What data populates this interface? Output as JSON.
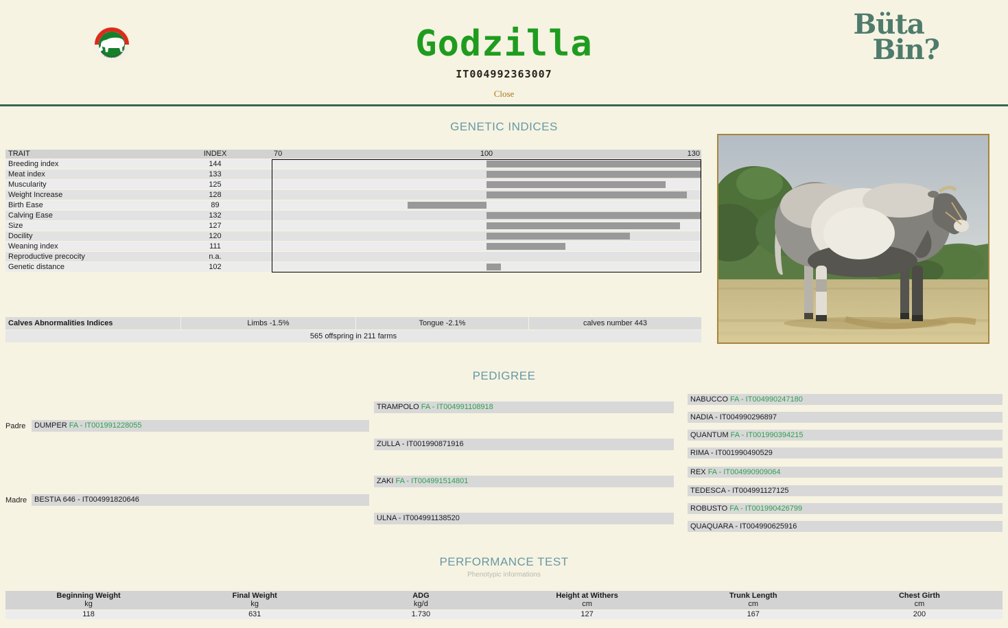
{
  "colors": {
    "page_background": "#f6f3e2",
    "accent_green_title": "#1f9c1f",
    "heading_teal": "#6898a4",
    "brand_teal": "#4e7b6c",
    "close_gold": "#a9781f",
    "divider_green": "#3d6454",
    "chart_bar_gray": "#999999",
    "pedigree_id_green": "#2f9e4f"
  },
  "header": {
    "title": "Godzilla",
    "animal_id": "IT004992363007",
    "close_label": "Close",
    "brand": {
      "line1": "Büta",
      "line2": "Bin?"
    },
    "breed_badge": {
      "icon": "piemontese-bull-badge-icon",
      "ring_text": "RAZZA PIEMONTESE"
    }
  },
  "genetic_indices": {
    "heading": "GENETIC INDICES",
    "columns": {
      "trait": "TRAIT",
      "index": "INDEX"
    },
    "axis_labels": [
      "70",
      "100",
      "130"
    ],
    "chart_data": {
      "type": "bar",
      "orientation": "horizontal",
      "baseline": 100,
      "xlim": [
        70,
        130
      ],
      "grid": false,
      "categories": [
        "Breeding index",
        "Meat index",
        "Muscularity",
        "Weight Increase",
        "Birth Ease",
        "Calving Ease",
        "Size",
        "Docility",
        "Weaning index",
        "Reproductive precocity",
        "Genetic distance"
      ],
      "values": [
        144,
        133,
        125,
        128,
        89,
        132,
        127,
        120,
        111,
        null,
        102
      ],
      "display_values": [
        "144",
        "133",
        "125",
        "128",
        "89",
        "132",
        "127",
        "120",
        "111",
        "n.a.",
        "102"
      ]
    },
    "calves": {
      "label": "Calves Abnormalities Indices",
      "limbs": "Limbs -1.5%",
      "tongue": "Tongue -2.1%",
      "calves_number": "calves number 443",
      "offspring_note": "565 offspring in 211 farms"
    },
    "photo": {
      "description": "piemontese-bull-photo"
    }
  },
  "pedigree": {
    "heading": "PEDIGREE",
    "padre_label": "Padre",
    "madre_label": "Madre",
    "nodes": [
      {
        "key": "sire",
        "name": "DUMPER",
        "reg": "FA - IT001991228055",
        "highlight": true
      },
      {
        "key": "dam",
        "name": "BESTIA 646",
        "reg": "- IT004991820646",
        "highlight": false
      },
      {
        "key": "sire-sire",
        "name": "TRAMPOLO",
        "reg": "FA - IT004991108918",
        "highlight": true
      },
      {
        "key": "sire-dam",
        "name": "ZULLA",
        "reg": "- IT001990871916",
        "highlight": false
      },
      {
        "key": "dam-sire",
        "name": "ZAKI",
        "reg": "FA - IT004991514801",
        "highlight": true
      },
      {
        "key": "dam-dam",
        "name": "ULNA",
        "reg": "- IT004991138520",
        "highlight": false
      },
      {
        "key": "sire-sire-sire",
        "name": "NABUCCO",
        "reg": "FA - IT004990247180",
        "highlight": true
      },
      {
        "key": "sire-sire-dam",
        "name": "NADIA",
        "reg": "- IT004990296897",
        "highlight": false
      },
      {
        "key": "sire-dam-sire",
        "name": "QUANTUM",
        "reg": "FA - IT001990394215",
        "highlight": true
      },
      {
        "key": "sire-dam-dam",
        "name": "RIMA",
        "reg": "- IT001990490529",
        "highlight": false
      },
      {
        "key": "dam-sire-sire",
        "name": "REX",
        "reg": "FA - IT004990909064",
        "highlight": true
      },
      {
        "key": "dam-sire-dam",
        "name": "TEDESCA",
        "reg": "- IT004991127125",
        "highlight": false
      },
      {
        "key": "dam-dam-sire",
        "name": "ROBUSTO",
        "reg": "FA - IT001990426799",
        "highlight": true
      },
      {
        "key": "dam-dam-dam",
        "name": "QUAQUARA",
        "reg": "- IT004990625916",
        "highlight": false
      }
    ]
  },
  "performance_test": {
    "heading": "PERFORMANCE TEST",
    "subtitle": "Phenotypic informations",
    "columns": [
      {
        "label": "Beginning Weight",
        "unit": "kg",
        "value": "118"
      },
      {
        "label": "Final Weight",
        "unit": "kg",
        "value": "631"
      },
      {
        "label": "ADG",
        "unit": "kg/d",
        "value": "1.730"
      },
      {
        "label": "Height at Withers",
        "unit": "cm",
        "value": "127"
      },
      {
        "label": "Trunk Length",
        "unit": "cm",
        "value": "167"
      },
      {
        "label": "Chest Girth",
        "unit": "cm",
        "value": "200"
      }
    ]
  }
}
